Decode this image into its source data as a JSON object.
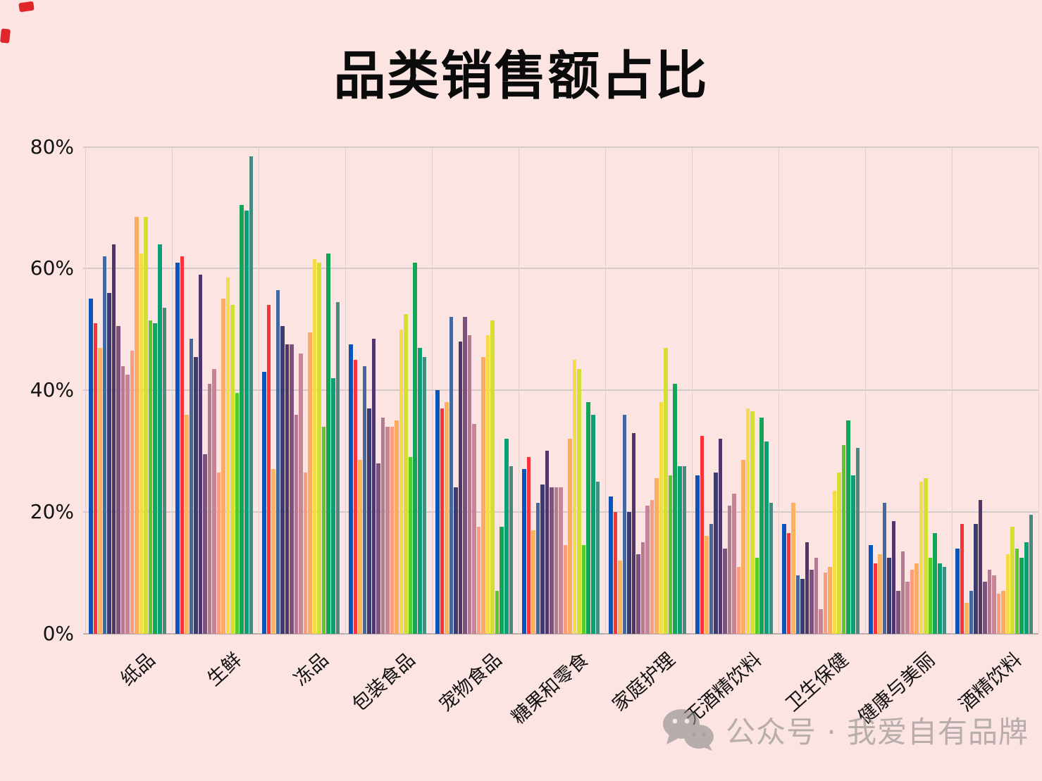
{
  "title": "品类销售额占比",
  "watermark": {
    "text": "公众号 · 我爱自有品牌"
  },
  "colors": {
    "background": "#fce4e2",
    "gridline": "#d6c9c9",
    "baseline": "#b9acac",
    "separator": "#e0d1d1",
    "title_text": "#0b0b0b",
    "axis_text": "#111111",
    "watermark": "#8d8d8d",
    "corner_mark": "#e0262b"
  },
  "chart_data": {
    "type": "bar",
    "title": "品类销售额占比",
    "xlabel": "",
    "ylabel": "",
    "ylim": [
      0,
      80
    ],
    "grid": true,
    "legend": false,
    "yticks": [
      {
        "value": 0,
        "label": "0%"
      },
      {
        "value": 20,
        "label": "20%"
      },
      {
        "value": 40,
        "label": "40%"
      },
      {
        "value": 60,
        "label": "60%"
      },
      {
        "value": 80,
        "label": "80%"
      }
    ],
    "categories": [
      "纸品",
      "生鲜",
      "冻品",
      "包装食品",
      "宠物食品",
      "糖果和零食",
      "家庭护理",
      "无酒精饮料",
      "卫生保健",
      "健康与美丽",
      "酒精饮料"
    ],
    "series": [
      {
        "name": "blue",
        "color": "#0a53b9",
        "values": [
          55,
          61,
          43,
          47.5,
          40,
          27,
          22.5,
          26,
          18,
          14.5,
          14
        ]
      },
      {
        "name": "red",
        "color": "#fb3338",
        "values": [
          51,
          62,
          54,
          45,
          37,
          29,
          20,
          32.5,
          16.5,
          11.5,
          18
        ]
      },
      {
        "name": "amber",
        "color": "#fcb35d",
        "values": [
          47,
          36,
          27,
          28.5,
          38,
          17,
          12,
          16,
          21.5,
          13,
          5
        ]
      },
      {
        "name": "steel-blue",
        "color": "#42689f",
        "values": [
          62,
          48.5,
          56.5,
          44,
          52,
          21.5,
          36,
          18,
          9.5,
          21.5,
          7
        ]
      },
      {
        "name": "navy",
        "color": "#3b3b6f",
        "values": [
          56,
          45.5,
          50.5,
          37,
          24,
          24.5,
          20,
          26.5,
          9,
          12.5,
          18
        ]
      },
      {
        "name": "eggplant",
        "color": "#50356c",
        "values": [
          64,
          59,
          47.5,
          48.5,
          48,
          30,
          33,
          32,
          15,
          18.5,
          22
        ]
      },
      {
        "name": "plum",
        "color": "#7b527b",
        "values": [
          50.5,
          29.5,
          47.5,
          28,
          52,
          24,
          13,
          14,
          10.5,
          7,
          8.5
        ]
      },
      {
        "name": "mauve",
        "color": "#b37a90",
        "values": [
          44,
          41,
          36,
          35.5,
          49,
          24,
          15,
          21,
          12.5,
          13.5,
          10.5
        ]
      },
      {
        "name": "rose",
        "color": "#c98397",
        "values": [
          42.5,
          43.5,
          46,
          34,
          34.5,
          24,
          21,
          23,
          4,
          8.5,
          9.5
        ]
      },
      {
        "name": "salmon",
        "color": "#fc9c7d",
        "values": [
          46.5,
          26.5,
          26.5,
          34,
          17.5,
          14.5,
          22,
          11,
          10,
          10.5,
          6.5
        ]
      },
      {
        "name": "orange",
        "color": "#fcab60",
        "values": [
          68.5,
          55,
          49.5,
          35,
          45.5,
          32,
          25.5,
          28.5,
          11,
          11.5,
          7
        ]
      },
      {
        "name": "gold",
        "color": "#f5da4a",
        "values": [
          62.5,
          58.5,
          61.5,
          50,
          49,
          45,
          38,
          37,
          23.5,
          25,
          13
        ]
      },
      {
        "name": "chartreuse",
        "color": "#d5de33",
        "values": [
          68.5,
          54,
          61,
          52.5,
          51.5,
          43.5,
          47,
          36.5,
          26.5,
          25.5,
          17.5
        ]
      },
      {
        "name": "lime",
        "color": "#58ca27",
        "values": [
          51.5,
          39.5,
          34,
          29,
          7,
          14.5,
          26,
          12.5,
          31,
          12.5,
          14
        ]
      },
      {
        "name": "green",
        "color": "#12a457",
        "values": [
          51,
          70.5,
          62.5,
          61,
          17.5,
          38,
          41,
          35.5,
          35,
          16.5,
          12.5
        ]
      },
      {
        "name": "teal",
        "color": "#0aa075",
        "values": [
          64,
          69.5,
          42,
          47,
          32,
          36,
          27.5,
          31.5,
          26,
          11.5,
          15
        ]
      },
      {
        "name": "dark-teal",
        "color": "#478a80",
        "values": [
          53.5,
          78.5,
          54.5,
          45.5,
          27.5,
          25,
          27.5,
          21.5,
          30.5,
          11,
          19.5
        ]
      }
    ]
  }
}
